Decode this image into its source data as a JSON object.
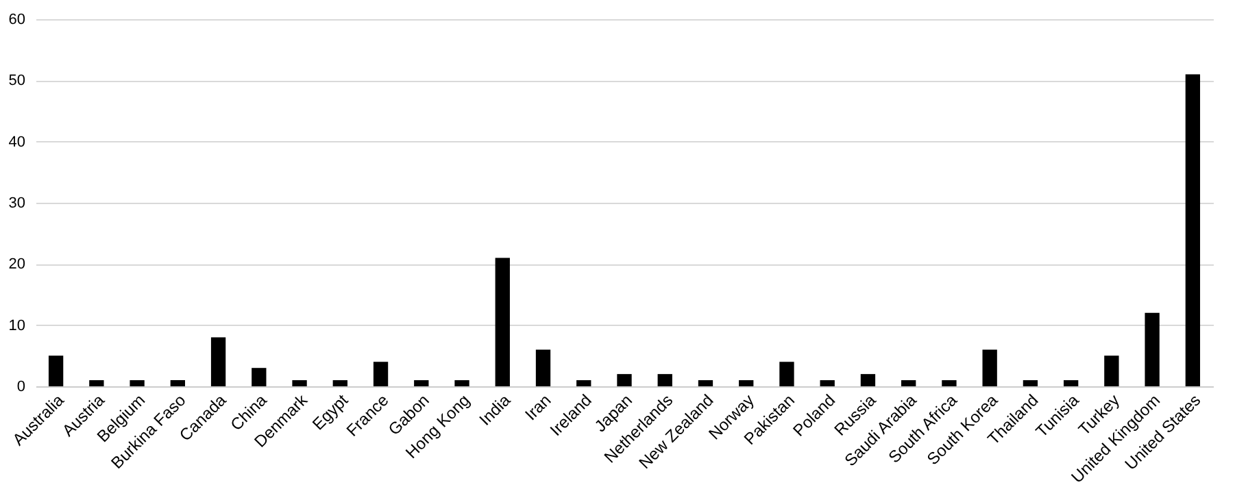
{
  "chart_data": {
    "type": "bar",
    "categories": [
      "Australia",
      "Austria",
      "Belgium",
      "Burkina Faso",
      "Canada",
      "China",
      "Denmark",
      "Egypt",
      "France",
      "Gabon",
      "Hong Kong",
      "India",
      "Iran",
      "Ireland",
      "Japan",
      "Netherlands",
      "New Zealand",
      "Norway",
      "Pakistan",
      "Poland",
      "Russia",
      "Saudi Arabia",
      "South Africa",
      "South Korea",
      "Thailand",
      "Tunisia",
      "Turkey",
      "United Kingdom",
      "United States"
    ],
    "values": [
      5,
      1,
      1,
      1,
      8,
      3,
      1,
      1,
      4,
      1,
      1,
      21,
      6,
      1,
      2,
      2,
      1,
      1,
      4,
      1,
      2,
      1,
      1,
      6,
      1,
      1,
      5,
      12,
      51
    ],
    "color": "#000000",
    "ylim": [
      0,
      60
    ],
    "yticks": [
      0,
      10,
      20,
      30,
      40,
      50,
      60
    ],
    "grid": "y"
  }
}
